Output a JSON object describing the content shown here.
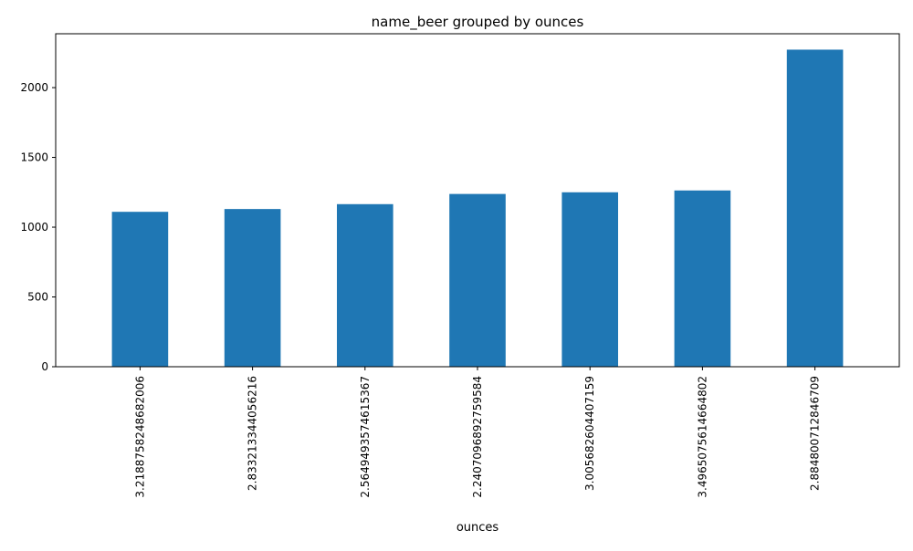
{
  "chart_data": {
    "type": "bar",
    "title": "name_beer grouped by ounces",
    "xlabel": "ounces",
    "ylabel": "",
    "categories": [
      "3.2188758248682006",
      "2.833213344056216",
      "2.5649493574615367",
      "2.2407096892759584",
      "3.005682604407159",
      "3.4965075614664802",
      "2.884800712846709"
    ],
    "values": [
      1110,
      1130,
      1165,
      1238,
      1250,
      1263,
      2272
    ],
    "ylim": [
      0,
      2386
    ],
    "yticks": [
      0,
      500,
      1000,
      1500,
      2000
    ],
    "ytick_labels": [
      "0",
      "500",
      "1000",
      "1500",
      "2000"
    ],
    "bar_color": "#1f77b4",
    "grid": false,
    "legend": "none"
  }
}
